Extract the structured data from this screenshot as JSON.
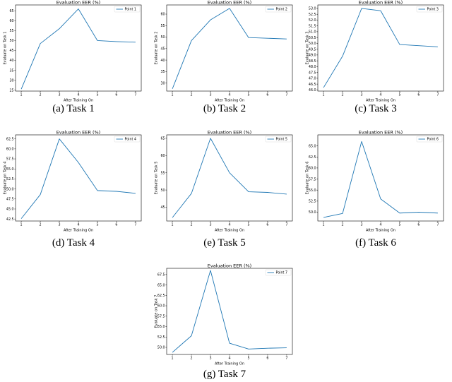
{
  "chart_data": [
    {
      "type": "line",
      "caption": "(a) Task 1",
      "title": "Evaluation EER (%)",
      "xlabel": "After Training On",
      "ylabel": "Evaluate on Task 1",
      "x": [
        1,
        2,
        3,
        4,
        5,
        6,
        7
      ],
      "series": [
        {
          "name": "Point 1",
          "values": [
            25.5,
            48.5,
            56,
            66,
            50,
            49.5,
            49.2
          ]
        }
      ],
      "xticks": [
        "1",
        "2",
        "3",
        "4",
        "5",
        "6",
        "7"
      ],
      "yticks": [
        "25",
        "30",
        "35",
        "40",
        "45",
        "50",
        "55",
        "60",
        "65"
      ],
      "ylim": [
        24.5,
        68
      ],
      "color": "#1f77b4",
      "legend": "top-right"
    },
    {
      "type": "line",
      "caption": "(b) Task 2",
      "title": "Evaluation EER (%)",
      "xlabel": "After Training On",
      "ylabel": "Evaluate on Task 2",
      "x": [
        1,
        2,
        3,
        4,
        5,
        6,
        7
      ],
      "series": [
        {
          "name": "Point 2",
          "values": [
            27.5,
            48.5,
            57.5,
            62.5,
            49.8,
            49.5,
            49.2
          ]
        }
      ],
      "xticks": [
        "1",
        "2",
        "3",
        "4",
        "5",
        "6",
        "7"
      ],
      "yticks": [
        "30",
        "35",
        "40",
        "45",
        "50",
        "55",
        "60"
      ],
      "ylim": [
        26.5,
        64
      ],
      "color": "#1f77b4",
      "legend": "top-right"
    },
    {
      "type": "line",
      "caption": "(c) Task 3",
      "title": "Evaluation EER (%)",
      "xlabel": "After Training On",
      "ylabel": "Evaluate on Task 3",
      "x": [
        1,
        2,
        3,
        4,
        5,
        6,
        7
      ],
      "series": [
        {
          "name": "Point 3",
          "values": [
            46.2,
            48.9,
            53.0,
            52.8,
            49.9,
            49.8,
            49.7
          ]
        }
      ],
      "xticks": [
        "1",
        "2",
        "3",
        "4",
        "5",
        "6",
        "7"
      ],
      "yticks": [
        "46.0",
        "46.5",
        "47.0",
        "47.5",
        "48.0",
        "48.5",
        "49.0",
        "49.5",
        "50.0",
        "50.5",
        "51.0",
        "51.5",
        "52.0",
        "52.5",
        "53.0"
      ],
      "ylim": [
        45.9,
        53.3
      ],
      "color": "#1f77b4",
      "legend": "top-right"
    },
    {
      "type": "line",
      "caption": "(d) Task 4",
      "title": "Evaluation EER (%)",
      "xlabel": "After Training On",
      "ylabel": "Evaluate on Task 4",
      "x": [
        1,
        2,
        3,
        4,
        5,
        6,
        7
      ],
      "series": [
        {
          "name": "Point 4",
          "values": [
            42.6,
            48.6,
            62.5,
            56.6,
            49.6,
            49.4,
            48.9
          ]
        }
      ],
      "xticks": [
        "1",
        "2",
        "3",
        "4",
        "5",
        "6",
        "7"
      ],
      "yticks": [
        "42.5",
        "45.0",
        "47.5",
        "50.0",
        "52.5",
        "55.0",
        "57.5",
        "60.0",
        "62.5"
      ],
      "ylim": [
        42.0,
        63.5
      ],
      "color": "#1f77b4",
      "legend": "top-right"
    },
    {
      "type": "line",
      "caption": "(e) Task 5",
      "title": "Evaluation EER (%)",
      "xlabel": "After Training On",
      "ylabel": "Evaluate on Task 5",
      "x": [
        1,
        2,
        3,
        4,
        5,
        6,
        7
      ],
      "series": [
        {
          "name": "Point 5",
          "values": [
            42.0,
            49.0,
            65.0,
            55.0,
            49.5,
            49.3,
            48.8
          ]
        }
      ],
      "xticks": [
        "1",
        "2",
        "3",
        "4",
        "5",
        "6",
        "7"
      ],
      "yticks": [
        "45",
        "50",
        "55",
        "60",
        "65"
      ],
      "ylim": [
        41.0,
        66.0
      ],
      "color": "#1f77b4",
      "legend": "top-right"
    },
    {
      "type": "line",
      "caption": "(f) Task 6",
      "title": "Evaluation EER (%)",
      "xlabel": "After Training On",
      "ylabel": "Evaluate on Task 6",
      "x": [
        1,
        2,
        3,
        4,
        5,
        6,
        7
      ],
      "series": [
        {
          "name": "Point 6",
          "values": [
            48.8,
            49.7,
            66.0,
            53.0,
            49.8,
            50.0,
            49.8
          ]
        }
      ],
      "xticks": [
        "1",
        "2",
        "3",
        "4",
        "5",
        "6",
        "7"
      ],
      "yticks": [
        "50.0",
        "52.5",
        "55.0",
        "57.5",
        "60.0",
        "62.5",
        "65.0"
      ],
      "ylim": [
        48.0,
        67.5
      ],
      "color": "#1f77b4",
      "legend": "top-right"
    },
    {
      "type": "line",
      "caption": "(g) Task 7",
      "title": "Evaluation EER (%)",
      "xlabel": "After Training On",
      "ylabel": "Evaluate on Task 7",
      "x": [
        1,
        2,
        3,
        4,
        5,
        6,
        7
      ],
      "series": [
        {
          "name": "Point 7",
          "values": [
            48.8,
            52.8,
            68.5,
            51.0,
            49.6,
            49.8,
            49.9
          ]
        }
      ],
      "xticks": [
        "1",
        "2",
        "3",
        "4",
        "5",
        "6",
        "7"
      ],
      "yticks": [
        "50.0",
        "52.5",
        "55.0",
        "57.5",
        "60.0",
        "62.5",
        "65.0",
        "67.5"
      ],
      "ylim": [
        48.3,
        69.0
      ],
      "color": "#1f77b4",
      "legend": "top-right"
    }
  ]
}
